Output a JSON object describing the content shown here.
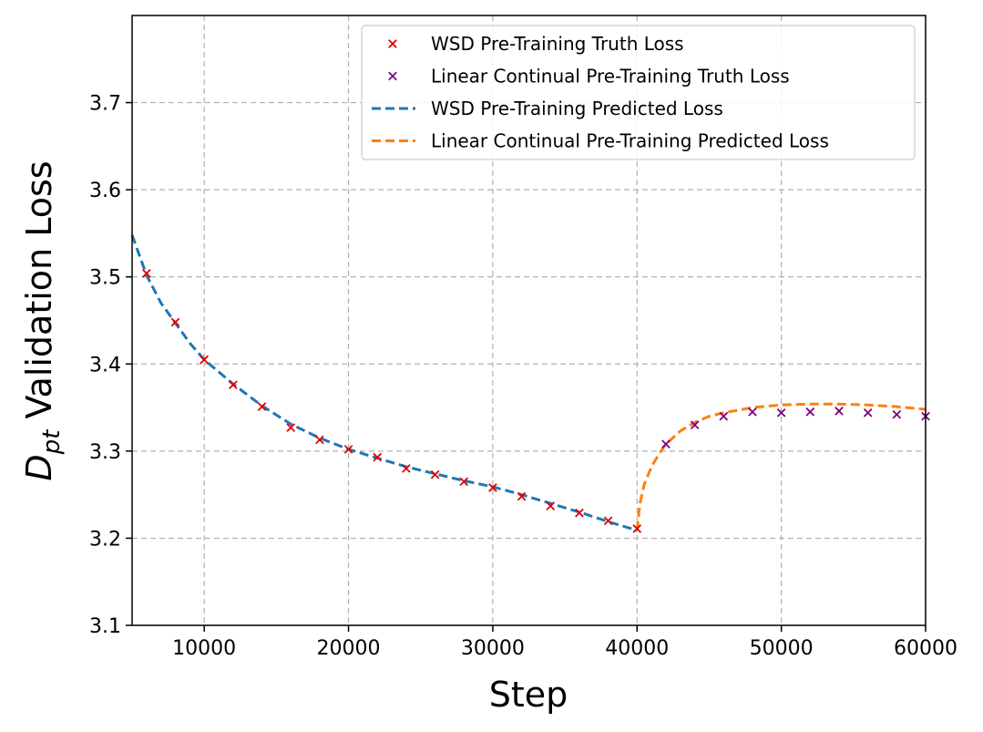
{
  "chart_data": {
    "type": "line",
    "xlabel": "Step",
    "ylabel_main": "D",
    "ylabel_sub": "pt",
    "ylabel_rest": " Validation Loss",
    "xlim": [
      5000,
      60000
    ],
    "ylim": [
      3.1,
      3.8
    ],
    "xticks": [
      10000,
      20000,
      30000,
      40000,
      50000,
      60000
    ],
    "xtick_labels": [
      "10000",
      "20000",
      "30000",
      "40000",
      "50000",
      "60000"
    ],
    "yticks": [
      3.1,
      3.2,
      3.3,
      3.4,
      3.5,
      3.6,
      3.7
    ],
    "ytick_labels": [
      "3.1",
      "3.2",
      "3.3",
      "3.4",
      "3.5",
      "3.6",
      "3.7"
    ],
    "grid": true,
    "legend_position": "top-right",
    "series": [
      {
        "name": "WSD Pre-Training Truth Loss",
        "kind": "marker",
        "color": "#e00000",
        "x": [
          6000,
          8000,
          10000,
          12000,
          14000,
          16000,
          18000,
          20000,
          22000,
          24000,
          26000,
          28000,
          30000,
          32000,
          34000,
          36000,
          38000,
          40000
        ],
        "y": [
          3.504,
          3.448,
          3.405,
          3.376,
          3.351,
          3.327,
          3.313,
          3.302,
          3.293,
          3.28,
          3.273,
          3.265,
          3.258,
          3.248,
          3.237,
          3.229,
          3.22,
          3.211
        ]
      },
      {
        "name": "Linear Continual Pre-Training Truth Loss",
        "kind": "marker",
        "color": "#800080",
        "x": [
          42000,
          44000,
          46000,
          48000,
          50000,
          52000,
          54000,
          56000,
          58000,
          60000
        ],
        "y": [
          3.308,
          3.33,
          3.34,
          3.345,
          3.344,
          3.345,
          3.346,
          3.344,
          3.342,
          3.34
        ]
      },
      {
        "name": "WSD Pre-Training Predicted Loss",
        "kind": "dashed-line",
        "color": "#1f77b4",
        "x": [
          5000,
          6000,
          7000,
          8000,
          9000,
          10000,
          12000,
          14000,
          16000,
          18000,
          20000,
          22000,
          24000,
          26000,
          28000,
          30000,
          32000,
          34000,
          36000,
          38000,
          40000
        ],
        "y": [
          3.548,
          3.502,
          3.47,
          3.447,
          3.424,
          3.405,
          3.377,
          3.352,
          3.331,
          3.315,
          3.302,
          3.292,
          3.282,
          3.274,
          3.266,
          3.259,
          3.25,
          3.24,
          3.23,
          3.219,
          3.209
        ]
      },
      {
        "name": "Linear Continual Pre-Training Predicted Loss",
        "kind": "dashed-line",
        "color": "#ff7f0e",
        "x": [
          40000,
          40200,
          40500,
          41000,
          41500,
          42000,
          43000,
          44000,
          45000,
          46000,
          48000,
          50000,
          52000,
          54000,
          56000,
          58000,
          60000
        ],
        "y": [
          3.209,
          3.24,
          3.262,
          3.282,
          3.296,
          3.308,
          3.323,
          3.333,
          3.34,
          3.344,
          3.35,
          3.353,
          3.354,
          3.354,
          3.353,
          3.351,
          3.348
        ]
      }
    ]
  }
}
